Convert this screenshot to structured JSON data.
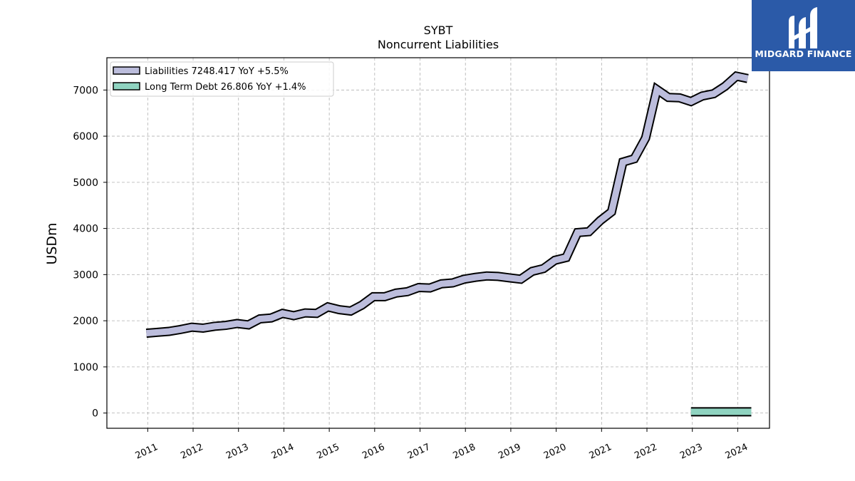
{
  "chart_data": {
    "type": "line",
    "title": "SYBT",
    "subtitle": "Noncurrent  Liabilities",
    "ylabel": "USDm",
    "xlabel": "",
    "ylim": [
      -330,
      7700
    ],
    "xlim": [
      2010.1,
      2024.7
    ],
    "yticks": [
      0,
      1000,
      2000,
      3000,
      4000,
      5000,
      6000,
      7000
    ],
    "xticks": [
      2011,
      2012,
      2013,
      2014,
      2015,
      2016,
      2017,
      2018,
      2019,
      2020,
      2021,
      2022,
      2023,
      2024
    ],
    "xtick_labels": [
      "2011",
      "2012",
      "2013",
      "2014",
      "2015",
      "2016",
      "2017",
      "2018",
      "2019",
      "2020",
      "2021",
      "2022",
      "2023",
      "2024"
    ],
    "grid": true,
    "legend_position": "top-left",
    "series": [
      {
        "name": "Liabilities",
        "legend_label": "Liabilities  7248.417 YoY +5.5%",
        "color": "#bcbddc",
        "outline": "#000000",
        "x": [
          2010.97,
          2011.22,
          2011.47,
          2011.72,
          2011.97,
          2012.22,
          2012.47,
          2012.72,
          2012.97,
          2013.22,
          2013.47,
          2013.72,
          2013.97,
          2014.22,
          2014.47,
          2014.72,
          2014.97,
          2015.22,
          2015.47,
          2015.72,
          2015.97,
          2016.22,
          2016.47,
          2016.72,
          2016.97,
          2017.22,
          2017.47,
          2017.72,
          2017.97,
          2018.22,
          2018.47,
          2018.72,
          2018.97,
          2019.22,
          2019.47,
          2019.72,
          2019.97,
          2020.22,
          2020.47,
          2020.72,
          2020.97,
          2021.22,
          2021.47,
          2021.72,
          2021.97,
          2022.22,
          2022.47,
          2022.72,
          2022.97,
          2023.22,
          2023.47,
          2023.72,
          2023.97,
          2024.22
        ],
        "values": [
          1730,
          1750,
          1770,
          1810,
          1860,
          1840,
          1880,
          1900,
          1940,
          1910,
          2040,
          2060,
          2160,
          2110,
          2170,
          2160,
          2300,
          2240,
          2210,
          2340,
          2520,
          2520,
          2600,
          2630,
          2720,
          2710,
          2800,
          2820,
          2900,
          2940,
          2970,
          2960,
          2930,
          2900,
          3070,
          3130,
          3310,
          3370,
          3910,
          3930,
          4170,
          4360,
          5440,
          5510,
          5960,
          7010,
          6840,
          6830,
          6750,
          6870,
          6920,
          7080,
          7300,
          7248.417
        ]
      },
      {
        "name": "Long Term Debt",
        "legend_label": "Long Term Debt  26.806 YoY +1.4%",
        "color": "#8fd3c0",
        "outline": "#000000",
        "x": [
          2022.97,
          2023.22,
          2023.47,
          2023.72,
          2023.97,
          2024.3
        ],
        "values": [
          26.4,
          26.5,
          26.6,
          26.7,
          26.8,
          26.806
        ]
      }
    ]
  },
  "logo": {
    "brand_text": "MIDGARD FINANCE"
  }
}
